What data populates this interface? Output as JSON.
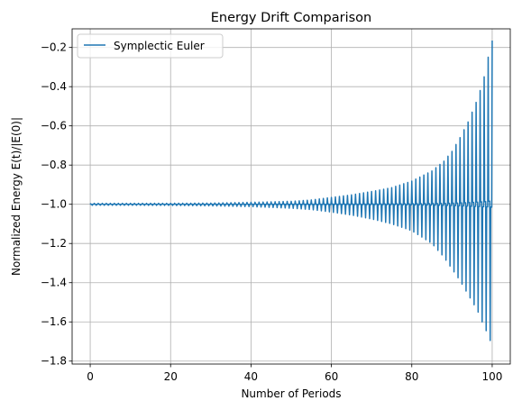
{
  "chart_data": {
    "type": "line",
    "title": "Energy Drift Comparison",
    "xlabel": "Number of Periods",
    "ylabel": "Normalized Energy E(t)/|E(0)|",
    "xlim": [
      -4.5,
      104.5
    ],
    "ylim": [
      -1.815,
      -0.105
    ],
    "xticks": [
      0,
      20,
      40,
      60,
      80,
      100
    ],
    "xtick_labels": [
      "0",
      "20",
      "40",
      "60",
      "80",
      "100"
    ],
    "yticks": [
      -1.8,
      -1.6,
      -1.4,
      -1.2,
      -1.0,
      -0.8,
      -0.6,
      -0.4,
      -0.2
    ],
    "ytick_labels": [
      "−1.8",
      "−1.6",
      "−1.4",
      "−1.2",
      "−1.0",
      "−0.8",
      "−0.6",
      "−0.4",
      "−0.2"
    ],
    "grid": true,
    "legend_position": "upper-left",
    "series": [
      {
        "name": "Symplectic Euler",
        "color": "#1f77b4",
        "description_of_shape": "oscillates once per period between an upper and lower envelope around -1.0",
        "envelope_x": [
          0,
          10,
          20,
          30,
          40,
          50,
          55,
          60,
          65,
          70,
          75,
          80,
          85,
          88,
          90,
          92,
          94,
          96,
          97,
          98,
          99,
          100
        ],
        "envelope_upper": [
          -0.995,
          -0.995,
          -0.995,
          -0.994,
          -0.99,
          -0.985,
          -0.978,
          -0.965,
          -0.952,
          -0.935,
          -0.915,
          -0.882,
          -0.83,
          -0.78,
          -0.73,
          -0.66,
          -0.58,
          -0.48,
          -0.42,
          -0.35,
          -0.25,
          -0.165
        ],
        "envelope_lower": [
          -1.005,
          -1.005,
          -1.006,
          -1.008,
          -1.012,
          -1.02,
          -1.027,
          -1.04,
          -1.055,
          -1.075,
          -1.1,
          -1.135,
          -1.2,
          -1.27,
          -1.33,
          -1.39,
          -1.46,
          -1.53,
          -1.57,
          -1.63,
          -1.66,
          -1.73
        ],
        "periods": 100
      }
    ]
  }
}
